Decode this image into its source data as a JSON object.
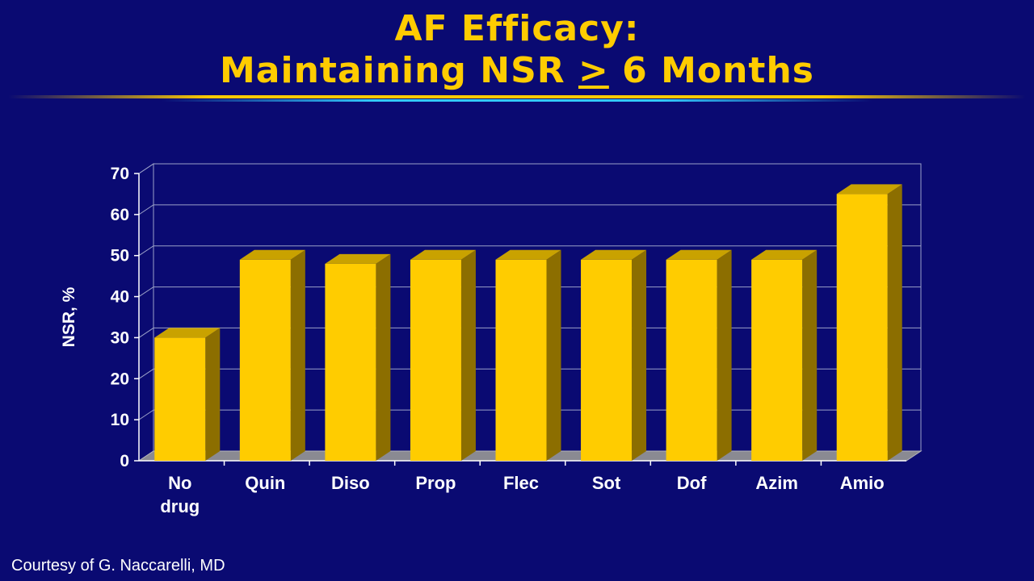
{
  "slide": {
    "title_line1": "AF Efficacy:",
    "title_line2_prefix": "Maintaining NSR ",
    "title_line2_symbol": ">",
    "title_line2_suffix": " 6 Months",
    "credit": "Courtesy of G. Naccarelli, MD"
  },
  "colors": {
    "background": "#0a0a72",
    "title": "#ffcc00",
    "bar_front": "#ffcc00",
    "bar_side": "#8c6e00",
    "bar_top": "#c9a200"
  },
  "chart_data": {
    "type": "bar",
    "categories": [
      [
        "No",
        "drug"
      ],
      [
        "Quin"
      ],
      [
        "Diso"
      ],
      [
        "Prop"
      ],
      [
        "Flec"
      ],
      [
        "Sot"
      ],
      [
        "Dof"
      ],
      [
        "Azim"
      ],
      [
        "Amio"
      ]
    ],
    "values": [
      30,
      49,
      48,
      49,
      49,
      49,
      49,
      49,
      65
    ],
    "title": "",
    "xlabel": "",
    "ylabel": "NSR, %",
    "ylim": [
      0,
      70
    ],
    "yticks": [
      0,
      10,
      20,
      30,
      40,
      50,
      60,
      70
    ],
    "grid": true,
    "style": "3d"
  }
}
